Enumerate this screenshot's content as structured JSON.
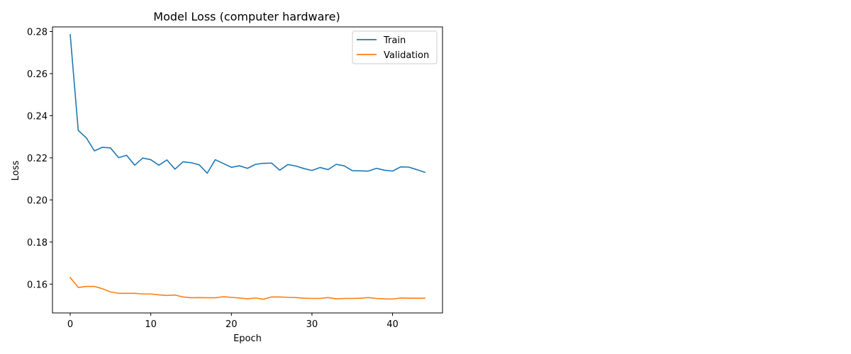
{
  "chart_data": {
    "type": "line",
    "title": "Model Loss (computer hardware)",
    "xlabel": "Epoch",
    "ylabel": "Loss",
    "xlim": [
      -2.2,
      46.2
    ],
    "ylim": [
      0.1463,
      0.2822
    ],
    "xticks": [
      0,
      10,
      20,
      30,
      40
    ],
    "xtick_labels": [
      "0",
      "10",
      "20",
      "30",
      "40"
    ],
    "yticks": [
      0.16,
      0.18,
      0.2,
      0.22,
      0.24,
      0.26,
      0.28
    ],
    "ytick_labels": [
      "0.16",
      "0.18",
      "0.20",
      "0.22",
      "0.24",
      "0.26",
      "0.28"
    ],
    "grid": false,
    "legend_position": "upper right",
    "x": [
      0,
      1,
      2,
      3,
      4,
      5,
      6,
      7,
      8,
      9,
      10,
      11,
      12,
      13,
      14,
      15,
      16,
      17,
      18,
      19,
      20,
      21,
      22,
      23,
      24,
      25,
      26,
      27,
      28,
      29,
      30,
      31,
      32,
      33,
      34,
      35,
      36,
      37,
      38,
      39,
      40,
      41,
      42,
      43,
      44
    ],
    "series": [
      {
        "name": "Train",
        "color": "#1f77b4",
        "values": [
          0.2785,
          0.233,
          0.2295,
          0.2233,
          0.225,
          0.2247,
          0.2201,
          0.2212,
          0.2165,
          0.2199,
          0.2191,
          0.2165,
          0.219,
          0.2146,
          0.2181,
          0.2177,
          0.2167,
          0.2127,
          0.2191,
          0.2173,
          0.2155,
          0.2162,
          0.215,
          0.2169,
          0.2174,
          0.2175,
          0.2141,
          0.2168,
          0.2161,
          0.2149,
          0.214,
          0.2154,
          0.2144,
          0.2169,
          0.2162,
          0.2139,
          0.2138,
          0.2137,
          0.215,
          0.2141,
          0.2137,
          0.2157,
          0.2156,
          0.2144,
          0.2131
        ]
      },
      {
        "name": "Validation",
        "color": "#ff7f0e",
        "values": [
          0.1631,
          0.1584,
          0.1589,
          0.1589,
          0.1578,
          0.1563,
          0.1556,
          0.1556,
          0.1556,
          0.1553,
          0.1553,
          0.1549,
          0.1546,
          0.1548,
          0.1539,
          0.1535,
          0.1536,
          0.1535,
          0.1535,
          0.154,
          0.1537,
          0.1534,
          0.153,
          0.1534,
          0.1528,
          0.1539,
          0.1539,
          0.1537,
          0.1536,
          0.1533,
          0.1532,
          0.1532,
          0.1536,
          0.153,
          0.1532,
          0.1532,
          0.1533,
          0.1536,
          0.1532,
          0.153,
          0.1529,
          0.1534,
          0.1533,
          0.1533,
          0.1533
        ]
      }
    ]
  }
}
